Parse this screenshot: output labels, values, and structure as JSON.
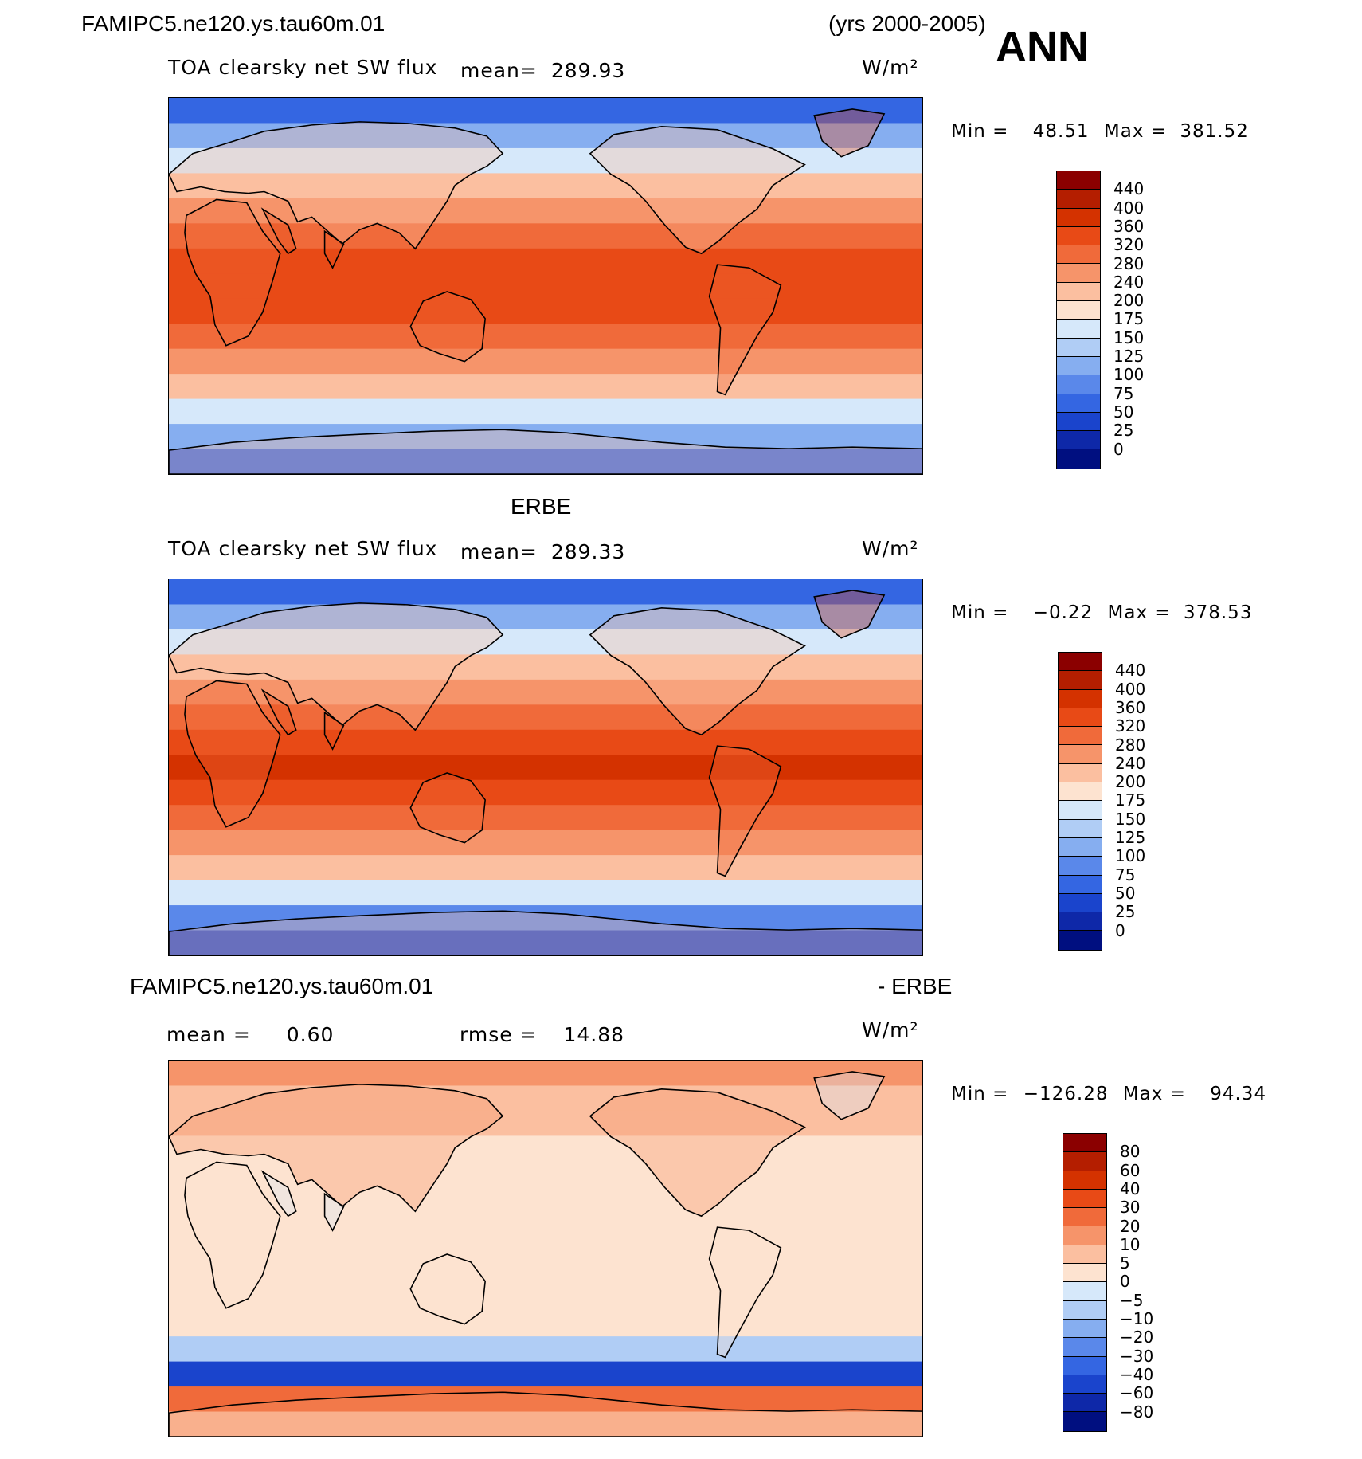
{
  "header": {
    "case_name": "FAMIPC5.ne120.ys.tau60m.01",
    "years": "(yrs 2000-2005)",
    "season": "ANN"
  },
  "panels": [
    {
      "title": "",
      "variable": "TOA clearsky net SW flux",
      "mean_label": "mean=",
      "mean_value": "289.93",
      "units": "W/m²",
      "min_label": "Min =",
      "min_value": "48.51",
      "max_label": "Max =",
      "max_value": "381.52"
    },
    {
      "title": "ERBE",
      "variable": "TOA clearsky net SW flux",
      "mean_label": "mean=",
      "mean_value": "289.33",
      "units": "W/m²",
      "min_label": "Min =",
      "min_value": "−0.22",
      "max_label": "Max =",
      "max_value": "378.53"
    },
    {
      "title_left": "FAMIPC5.ne120.ys.tau60m.01",
      "title_right": "- ERBE",
      "mean_label": "mean =",
      "mean_value": "0.60",
      "rmse_label": "rmse =",
      "rmse_value": "14.88",
      "units": "W/m²",
      "min_label": "Min =",
      "min_value": "−126.28",
      "max_label": "Max =",
      "max_value": "94.34"
    }
  ],
  "chart_data": [
    {
      "type": "heatmap",
      "title": "TOA clearsky net SW flux",
      "subtitle": "FAMIPC5.ne120.ys.tau60m.01 (yrs 2000-2005) ANN",
      "units": "W/m²",
      "mean": 289.93,
      "min": 48.51,
      "max": 381.52,
      "colorbar_levels": [
        "440",
        "400",
        "360",
        "320",
        "280",
        "240",
        "200",
        "175",
        "150",
        "125",
        "100",
        "75",
        "50",
        "25",
        "0"
      ],
      "colorbar_colors": [
        "#8b0000",
        "#b41e00",
        "#d43200",
        "#e84a16",
        "#f06a3a",
        "#f6946a",
        "#fbbfa0",
        "#fde3d0",
        "#d6e8fa",
        "#b0cdf5",
        "#86aef0",
        "#5a88ea",
        "#3466e2",
        "#1a44cc",
        "#0e28a8",
        "#000f80"
      ],
      "zonal_band_values_north_to_south": [
        60,
        110,
        165,
        220,
        270,
        310,
        340,
        355,
        340,
        310,
        270,
        220,
        160,
        100,
        55
      ]
    },
    {
      "type": "heatmap",
      "title": "TOA clearsky net SW flux",
      "subtitle": "ERBE",
      "units": "W/m²",
      "mean": 289.33,
      "min": -0.22,
      "max": 378.53,
      "colorbar_levels": [
        "440",
        "400",
        "360",
        "320",
        "280",
        "240",
        "200",
        "175",
        "150",
        "125",
        "100",
        "75",
        "50",
        "25",
        "0"
      ],
      "colorbar_colors": [
        "#8b0000",
        "#b41e00",
        "#d43200",
        "#e84a16",
        "#f06a3a",
        "#f6946a",
        "#fbbfa0",
        "#fde3d0",
        "#d6e8fa",
        "#b0cdf5",
        "#86aef0",
        "#5a88ea",
        "#3466e2",
        "#1a44cc",
        "#0e28a8",
        "#000f80"
      ],
      "zonal_band_values_north_to_south": [
        55,
        115,
        170,
        225,
        275,
        315,
        345,
        360,
        345,
        310,
        270,
        225,
        170,
        90,
        40
      ]
    },
    {
      "type": "heatmap",
      "title": "FAMIPC5.ne120.ys.tau60m.01 - ERBE",
      "units": "W/m²",
      "mean": 0.6,
      "rmse": 14.88,
      "min": -126.28,
      "max": 94.34,
      "colorbar_levels": [
        "80",
        "60",
        "40",
        "30",
        "20",
        "10",
        "5",
        "0",
        "−5",
        "−10",
        "−20",
        "−30",
        "−40",
        "−60",
        "−80"
      ],
      "colorbar_colors": [
        "#8b0000",
        "#b41e00",
        "#d43200",
        "#e84a16",
        "#f06a3a",
        "#f6946a",
        "#fbbfa0",
        "#fde3d0",
        "#d6e8fa",
        "#b0cdf5",
        "#86aef0",
        "#5a88ea",
        "#3466e2",
        "#1a44cc",
        "#0e28a8",
        "#000f80"
      ],
      "zonal_band_values_north_to_south": [
        10,
        5,
        8,
        4,
        3,
        2,
        2,
        3,
        2,
        2,
        3,
        -8,
        -50,
        20,
        5
      ]
    }
  ]
}
